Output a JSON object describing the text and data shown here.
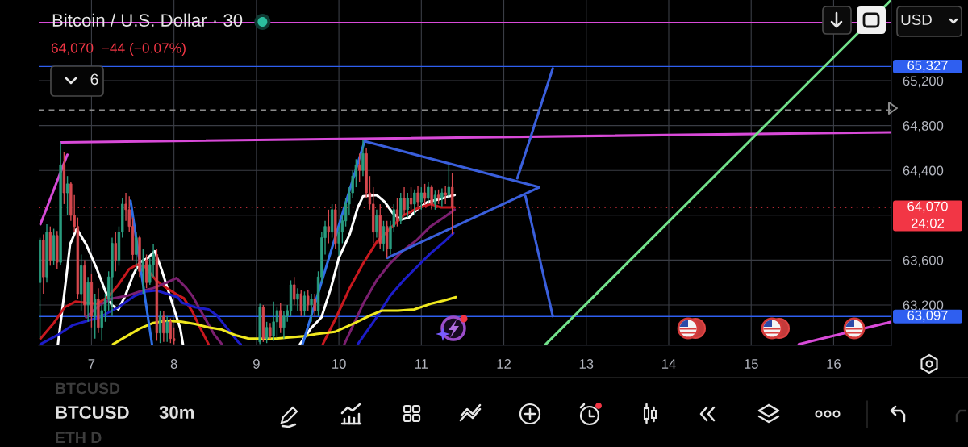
{
  "chart_data": {
    "type": "candlestick",
    "title": "Bitcoin / U.S. Dollar · 30",
    "subtitle": "64,070  −44 (−0.07%)",
    "x": [
      6.375,
      6.417,
      6.458,
      6.5,
      6.542,
      6.583,
      6.625,
      6.667,
      6.708,
      6.75,
      6.792,
      6.833,
      6.875,
      6.917,
      6.958,
      7.0,
      7.042,
      7.083,
      7.125,
      7.167,
      7.208,
      7.25,
      7.292,
      7.333,
      7.375,
      7.417,
      7.458,
      7.5,
      7.542,
      7.583,
      7.625,
      7.667,
      7.708,
      7.75,
      7.792,
      7.833,
      7.875,
      7.917,
      7.958,
      8.0,
      9.042,
      9.083,
      9.125,
      9.167,
      9.208,
      9.25,
      9.292,
      9.333,
      9.375,
      9.417,
      9.458,
      9.5,
      9.542,
      9.583,
      9.625,
      9.667,
      9.708,
      9.75,
      9.792,
      9.833,
      9.875,
      9.917,
      9.958,
      10.0,
      10.042,
      10.083,
      10.125,
      10.167,
      10.208,
      10.25,
      10.292,
      10.333,
      10.375,
      10.417,
      10.458,
      10.5,
      10.542,
      10.583,
      10.625,
      10.667,
      10.708,
      10.75,
      10.792,
      10.833,
      10.875,
      10.917,
      10.958,
      11.0,
      11.042,
      11.083,
      11.125,
      11.167,
      11.208,
      11.25,
      11.292,
      11.333,
      11.375
    ],
    "ohlc": [
      [
        63400,
        63800,
        62900,
        63780
      ],
      [
        63780,
        63830,
        63300,
        63450
      ],
      [
        63450,
        63920,
        63400,
        63850
      ],
      [
        63850,
        63900,
        63550,
        63600
      ],
      [
        63600,
        63880,
        63560,
        63820
      ],
      [
        63820,
        63860,
        63520,
        63580
      ],
      [
        63580,
        64650,
        63560,
        64450
      ],
      [
        64450,
        64560,
        64100,
        64200
      ],
      [
        64200,
        64350,
        64000,
        64280
      ],
      [
        64280,
        64300,
        63950,
        64000
      ],
      [
        64000,
        64180,
        63850,
        63900
      ],
      [
        63900,
        63980,
        63250,
        63300
      ],
      [
        63300,
        63650,
        63150,
        63550
      ],
      [
        63550,
        63600,
        63100,
        63200
      ],
      [
        63200,
        63450,
        63050,
        63400
      ],
      [
        63400,
        63480,
        63000,
        63100
      ],
      [
        63100,
        63300,
        62900,
        63250
      ],
      [
        63250,
        63350,
        62950,
        63000
      ],
      [
        63000,
        63200,
        62880,
        63150
      ],
      [
        63150,
        63300,
        63050,
        63250
      ],
      [
        63250,
        63500,
        63150,
        63450
      ],
      [
        63450,
        63800,
        63100,
        63750
      ],
      [
        63750,
        63850,
        63500,
        63600
      ],
      [
        63600,
        63900,
        63550,
        63850
      ],
      [
        63850,
        64150,
        63800,
        64100
      ],
      [
        64100,
        64200,
        63950,
        64050
      ],
      [
        64050,
        64170,
        63850,
        63900
      ],
      [
        63900,
        63980,
        63600,
        63650
      ],
      [
        63650,
        63850,
        63500,
        63800
      ],
      [
        63800,
        63820,
        63450,
        63500
      ],
      [
        63500,
        63700,
        63300,
        63600
      ],
      [
        63600,
        63650,
        63350,
        63400
      ],
      [
        63400,
        63620,
        63380,
        63560
      ],
      [
        63560,
        63740,
        63450,
        63650
      ],
      [
        63650,
        63700,
        62880,
        62950
      ],
      [
        62950,
        63150,
        62860,
        63100
      ],
      [
        63100,
        63150,
        62870,
        62950
      ],
      [
        62950,
        63100,
        62870,
        63050
      ],
      [
        63050,
        63080,
        62860,
        62900
      ],
      [
        62900,
        63000,
        62850,
        62880
      ],
      [
        62870,
        63210,
        62850,
        63180
      ],
      [
        63180,
        63200,
        62870,
        62900
      ],
      [
        62900,
        63050,
        62860,
        63000
      ],
      [
        63000,
        63040,
        62900,
        62920
      ],
      [
        62920,
        63230,
        62880,
        63050
      ],
      [
        63050,
        63180,
        62900,
        63150
      ],
      [
        63150,
        63220,
        62950,
        63000
      ],
      [
        63000,
        63150,
        62900,
        63100
      ],
      [
        63100,
        63200,
        63050,
        63150
      ],
      [
        63150,
        63420,
        63100,
        63380
      ],
      [
        63380,
        63450,
        63200,
        63250
      ],
      [
        63250,
        63350,
        63150,
        63300
      ],
      [
        63300,
        63330,
        63100,
        63150
      ],
      [
        63150,
        63320,
        63100,
        63280
      ],
      [
        63280,
        63330,
        63150,
        63200
      ],
      [
        63200,
        63300,
        63050,
        63250
      ],
      [
        63250,
        63300,
        63100,
        63150
      ],
      [
        63150,
        63500,
        63100,
        63450
      ],
      [
        63450,
        63850,
        63400,
        63800
      ],
      [
        63800,
        63950,
        63650,
        63900
      ],
      [
        63900,
        64050,
        63750,
        63850
      ],
      [
        63850,
        64100,
        63800,
        64050
      ],
      [
        64050,
        64100,
        63700,
        63750
      ],
      [
        63750,
        63900,
        63640,
        63850
      ],
      [
        63850,
        64000,
        63750,
        63950
      ],
      [
        63950,
        64150,
        63900,
        64100
      ],
      [
        64100,
        64250,
        64000,
        64200
      ],
      [
        64200,
        64400,
        64150,
        64350
      ],
      [
        64350,
        64500,
        64250,
        64450
      ],
      [
        64450,
        64550,
        64300,
        64400
      ],
      [
        64400,
        64670,
        64350,
        64550
      ],
      [
        64550,
        64600,
        64150,
        64200
      ],
      [
        64200,
        64350,
        64050,
        64100
      ],
      [
        64100,
        64250,
        63750,
        63850
      ],
      [
        63850,
        64050,
        63800,
        64000
      ],
      [
        64000,
        64100,
        63700,
        63750
      ],
      [
        63750,
        63950,
        63680,
        63900
      ],
      [
        63900,
        63950,
        63620,
        63700
      ],
      [
        63700,
        63950,
        63650,
        63900
      ],
      [
        63900,
        64100,
        63850,
        64050
      ],
      [
        64050,
        64150,
        63900,
        63950
      ],
      [
        63950,
        64200,
        63920,
        64150
      ],
      [
        64150,
        64250,
        64000,
        64050
      ],
      [
        64050,
        64200,
        63980,
        64150
      ],
      [
        64150,
        64250,
        64050,
        64100
      ],
      [
        64100,
        64230,
        64000,
        64200
      ],
      [
        64200,
        64260,
        64080,
        64120
      ],
      [
        64120,
        64250,
        64050,
        64200
      ],
      [
        64200,
        64280,
        64100,
        64150
      ],
      [
        64150,
        64300,
        64100,
        64250
      ],
      [
        64250,
        64270,
        64050,
        64100
      ],
      [
        64100,
        64220,
        64050,
        64180
      ],
      [
        64180,
        64230,
        64100,
        64150
      ],
      [
        64150,
        64240,
        64080,
        64200
      ],
      [
        64200,
        64260,
        64100,
        64180
      ],
      [
        64180,
        64450,
        64150,
        64250
      ],
      [
        64250,
        64380,
        63830,
        64070
      ]
    ],
    "colors": [
      "#2a9d80",
      "#d5484d",
      "#2a9d80",
      "#d5484d",
      "#2a9d80",
      "#d5484d",
      "#2a9d80",
      "#d5484d",
      "#2a9d80",
      "#d5484d",
      "#d5484d",
      "#d5484d",
      "#2a9d80",
      "#d5484d",
      "#2a9d80",
      "#d5484d",
      "#2a9d80",
      "#d5484d",
      "#2a9d80",
      "#2a9d80",
      "#2a9d80",
      "#2a9d80",
      "#d5484d",
      "#2a9d80",
      "#2a9d80",
      "#d5484d",
      "#d5484d",
      "#d5484d",
      "#2a9d80",
      "#d5484d",
      "#2a9d80",
      "#d5484d",
      "#2a9d80",
      "#2a9d80",
      "#d5484d",
      "#2a9d80",
      "#d5484d",
      "#2a9d80",
      "#d5484d",
      "#d5484d",
      "#2a9d80",
      "#d5484d",
      "#2a9d80",
      "#d5484d",
      "#2a9d80",
      "#2a9d80",
      "#d5484d",
      "#2a9d80",
      "#2a9d80",
      "#2a9d80",
      "#d5484d",
      "#2a9d80",
      "#d5484d",
      "#2a9d80",
      "#d5484d",
      "#2a9d80",
      "#d5484d",
      "#2a9d80",
      "#2a9d80",
      "#2a9d80",
      "#d5484d",
      "#2a9d80",
      "#d5484d",
      "#2a9d80",
      "#2a9d80",
      "#2a9d80",
      "#2a9d80",
      "#2a9d80",
      "#2a9d80",
      "#d5484d",
      "#2a9d80",
      "#d5484d",
      "#d5484d",
      "#d5484d",
      "#2a9d80",
      "#d5484d",
      "#2a9d80",
      "#d5484d",
      "#2a9d80",
      "#2a9d80",
      "#d5484d",
      "#2a9d80",
      "#d5484d",
      "#2a9d80",
      "#d5484d",
      "#2a9d80",
      "#d5484d",
      "#2a9d80",
      "#d5484d",
      "#2a9d80",
      "#d5484d",
      "#2a9d80",
      "#d5484d",
      "#2a9d80",
      "#d5484d",
      "#2a9d80",
      "#d5484d"
    ],
    "series": [
      {
        "type": "line",
        "color": "#ffffff",
        "x": [
          6.593,
          6.675,
          6.74,
          6.821,
          6.935,
          7.066,
          7.164,
          7.245,
          7.326,
          7.408,
          7.506,
          7.587,
          7.685,
          7.767,
          7.848,
          7.93,
          8.011,
          8.077,
          8.109,
          8.8,
          9.528,
          9.659,
          9.789,
          9.903,
          10.0,
          10.131,
          10.229,
          10.294,
          10.457,
          10.555,
          10.653,
          10.751,
          10.849,
          10.947,
          11.077,
          11.208,
          11.338,
          11.404
        ],
        "values": [
          62850,
          63330,
          63740,
          63880,
          63740,
          63520,
          63330,
          63200,
          63160,
          63280,
          63470,
          63580,
          63620,
          63680,
          63520,
          63330,
          63140,
          62990,
          62850,
          null,
          62850,
          62990,
          63090,
          63350,
          63620,
          63830,
          64070,
          64170,
          64180,
          64120,
          64020,
          63960,
          63980,
          64050,
          64120,
          64140,
          64170,
          64180
        ]
      },
      {
        "type": "line",
        "color": "#c8181e",
        "x": [
          6.381,
          6.544,
          6.675,
          6.805,
          6.935,
          7.066,
          7.196,
          7.326,
          7.457,
          7.555,
          7.652,
          7.783,
          7.913,
          8.043,
          8.12,
          8.224,
          8.322,
          8.419,
          9.0,
          9.805,
          9.968,
          10.131,
          10.294,
          10.457,
          10.62,
          10.784,
          10.947,
          11.11,
          11.24,
          11.404
        ],
        "values": [
          62900,
          63040,
          63180,
          63230,
          63220,
          63210,
          63270,
          63380,
          63520,
          63560,
          63540,
          63420,
          63350,
          63290,
          63260,
          63140,
          62990,
          62850,
          null,
          62850,
          63090,
          63350,
          63570,
          63760,
          63880,
          64000,
          64060,
          64100,
          64070,
          64070
        ]
      },
      {
        "type": "line",
        "color": "#7b1f70",
        "x": [
          6.935,
          7.098,
          7.261,
          7.424,
          7.587,
          7.75,
          7.913,
          8.03,
          8.14,
          8.224,
          8.354,
          8.485,
          8.582,
          9.3,
          10.066,
          10.294,
          10.457,
          10.62,
          10.784,
          10.947,
          11.11,
          11.273,
          11.404
        ],
        "values": [
          63090,
          63200,
          63260,
          63280,
          63320,
          63350,
          63400,
          63440,
          63360,
          63280,
          63110,
          62940,
          62850,
          null,
          62850,
          63210,
          63420,
          63570,
          63690,
          63780,
          63900,
          63980,
          64050
        ]
      },
      {
        "type": "line",
        "color": "#1c1cc8",
        "x": [
          6.381,
          6.609,
          6.772,
          7.098,
          7.326,
          7.522,
          7.652,
          7.783,
          7.913,
          8.043,
          8.1,
          8.256,
          8.419,
          8.517,
          8.647,
          8.778,
          8.81,
          9.5,
          10.229,
          10.457,
          10.62,
          10.784,
          10.947,
          11.11,
          11.273,
          11.388
        ],
        "values": [
          62850,
          62940,
          63020,
          63090,
          63180,
          63280,
          63320,
          63330,
          63300,
          63270,
          63220,
          63180,
          63160,
          63110,
          62990,
          62870,
          62850,
          null,
          62850,
          63090,
          63280,
          63420,
          63540,
          63660,
          63760,
          63840
        ]
      },
      {
        "type": "line",
        "color": "#f0e81e",
        "x": [
          7.261,
          7.424,
          7.587,
          7.75,
          7.913,
          8.093,
          8.256,
          8.419,
          8.582,
          8.745,
          8.908,
          9.071,
          9.234,
          9.397,
          9.56,
          9.724,
          9.952,
          10.196,
          10.392,
          10.522,
          10.718,
          10.914,
          11.11,
          11.273,
          11.42
        ],
        "values": [
          62850,
          62920,
          62990,
          63040,
          63060,
          63050,
          63030,
          63000,
          62980,
          62930,
          62900,
          62900,
          62900,
          62910,
          62920,
          62940,
          62960,
          63040,
          63110,
          63150,
          63150,
          63160,
          63210,
          63240,
          63270
        ]
      },
      {
        "type": "line",
        "color": "#d84ad8",
        "x": [
          6.381,
          6.707
        ],
        "values": [
          63920,
          64540
        ]
      },
      {
        "type": "line",
        "color": "#d84ad8",
        "x": [
          6.63,
          16.69
        ],
        "values": [
          64650,
          64740
        ]
      },
      {
        "type": "line",
        "color": "#d84ad8",
        "x": [
          15.577,
          16.7
        ],
        "values": [
          62850,
          63050
        ]
      },
      {
        "type": "line",
        "color": "#2f6fe6",
        "x": [
          7.474,
          7.734
        ],
        "values": [
          64130,
          62850
        ]
      },
      {
        "type": "line",
        "color": "#2f6fe6",
        "x": [
          9.56,
          10.311
        ],
        "values": [
          62850,
          64660
        ]
      },
      {
        "type": "line",
        "color": "#3a5fdc",
        "x": [
          10.311,
          12.43
        ],
        "values": [
          64660,
          64250
        ]
      },
      {
        "type": "line",
        "color": "#3a5fdc",
        "x": [
          10.588,
          12.43
        ],
        "values": [
          63620,
          64250
        ]
      },
      {
        "type": "line",
        "color": "#3a5fdc",
        "x": [
          12.164,
          12.594
        ],
        "values": [
          64330,
          65310
        ]
      },
      {
        "type": "line",
        "color": "#3a5fdc",
        "x": [
          12.262,
          12.594
        ],
        "values": [
          64170,
          63100
        ]
      },
      {
        "type": "line",
        "color": "#72e08a",
        "x": [
          12.509,
          16.683
        ],
        "values": [
          62850,
          65910
        ]
      }
    ],
    "ref_lines": [
      {
        "axis": "y",
        "value": 65720,
        "color": "#d84ad8"
      },
      {
        "axis": "y",
        "value": 65327,
        "label": "65,327",
        "color": "#2f5ff0"
      },
      {
        "axis": "y",
        "value": 64940,
        "color": "#8c8c8c",
        "line_style": "dashed"
      },
      {
        "axis": "y",
        "value": 64070,
        "label": "64,070\n24:02",
        "color": "#f23645",
        "line_style": "dotted"
      },
      {
        "axis": "y",
        "value": 63097,
        "label": "63,097",
        "color": "#2f5ff0"
      }
    ],
    "xlim": [
      6.36,
      16.7
    ],
    "ylim": [
      62840,
      65920
    ],
    "xticks": [
      7,
      8,
      9,
      10,
      11,
      12,
      13,
      14,
      15,
      16
    ],
    "yticks": [
      {
        "value": 63200,
        "label": "63,200"
      },
      {
        "value": 63600,
        "label": "63,600"
      },
      {
        "value": 64000,
        "label": null
      },
      {
        "value": 64400,
        "label": "64,400"
      },
      {
        "value": 64800,
        "label": "64,800"
      },
      {
        "value": 65200,
        "label": "65,200"
      },
      {
        "value": 65600,
        "label": null
      }
    ],
    "grid": true,
    "annotations": [
      "6",
      "USD",
      "BTCUSD",
      "BTCUSD",
      "30m",
      "ETH D"
    ]
  }
}
